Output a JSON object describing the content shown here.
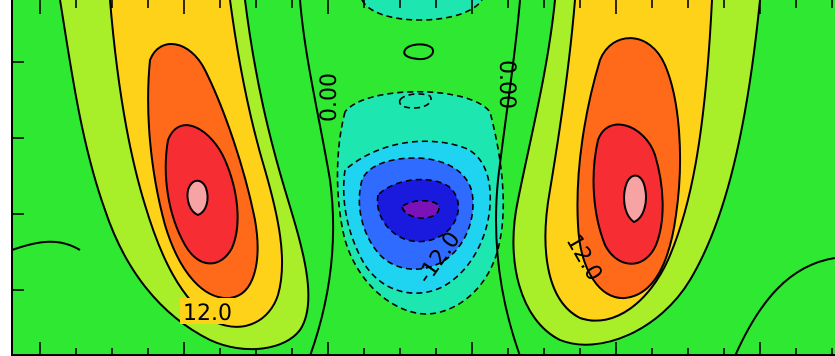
{
  "chart_data": {
    "type": "contour",
    "title": "",
    "xlabel": "",
    "ylabel": "",
    "contour_labels": [
      "12.0",
      "0.00",
      "0.00",
      "-12.0",
      "12.0"
    ],
    "color_levels": [
      {
        "level": -30,
        "color": "#7a12b8"
      },
      {
        "level": -24,
        "color": "#1a1adf"
      },
      {
        "level": -18,
        "color": "#2f6bff"
      },
      {
        "level": -12,
        "color": "#1fd4f0"
      },
      {
        "level": -6,
        "color": "#1de6b0"
      },
      {
        "level": 0,
        "color": "#2ee832"
      },
      {
        "level": 6,
        "color": "#a8ef2a"
      },
      {
        "level": 12,
        "color": "#ffd21a"
      },
      {
        "level": 18,
        "color": "#ff6a1a"
      },
      {
        "level": 24,
        "color": "#f62d33"
      },
      {
        "level": 30,
        "color": "#f7a3a3"
      }
    ],
    "grid": false,
    "negative_contours_dashed": true
  }
}
